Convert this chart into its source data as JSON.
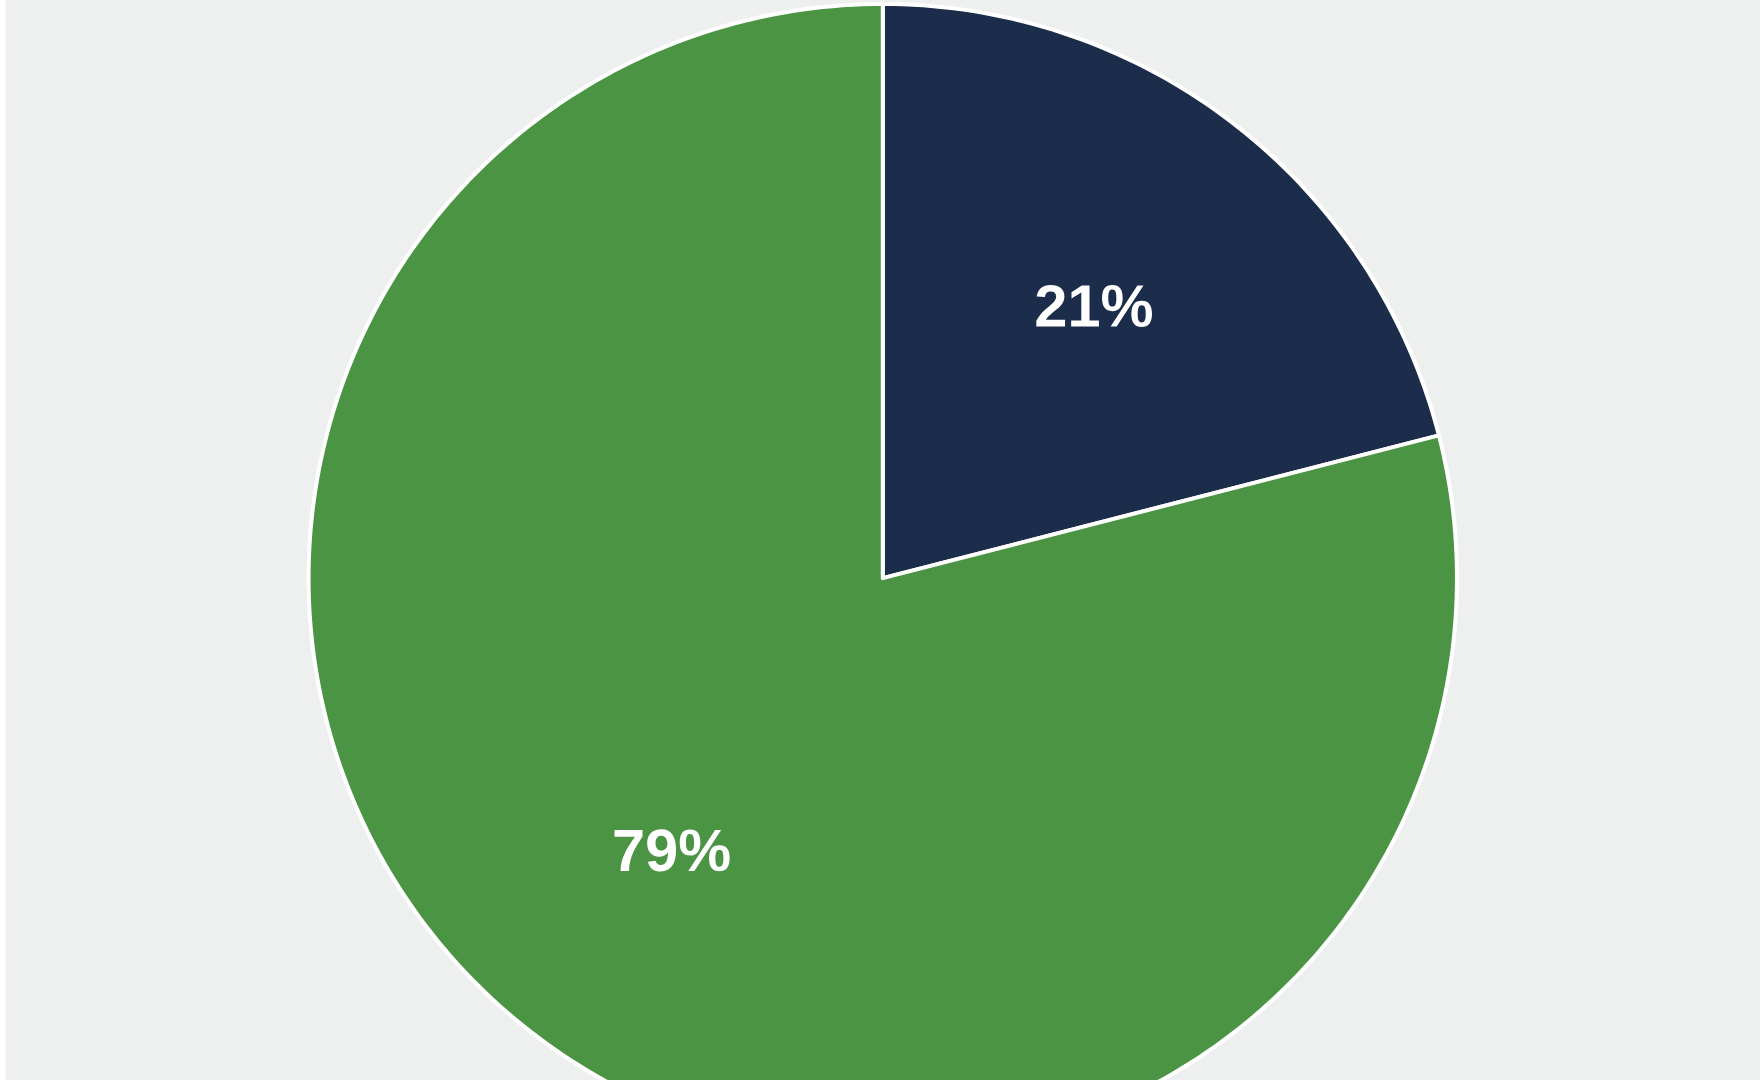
{
  "chart_data": {
    "type": "pie",
    "categories": [
      null,
      null
    ],
    "values": [
      21,
      79
    ],
    "colors": [
      "#1b2d4a",
      "#4a9444"
    ],
    "value_labels": [
      "21%",
      "79%"
    ]
  }
}
